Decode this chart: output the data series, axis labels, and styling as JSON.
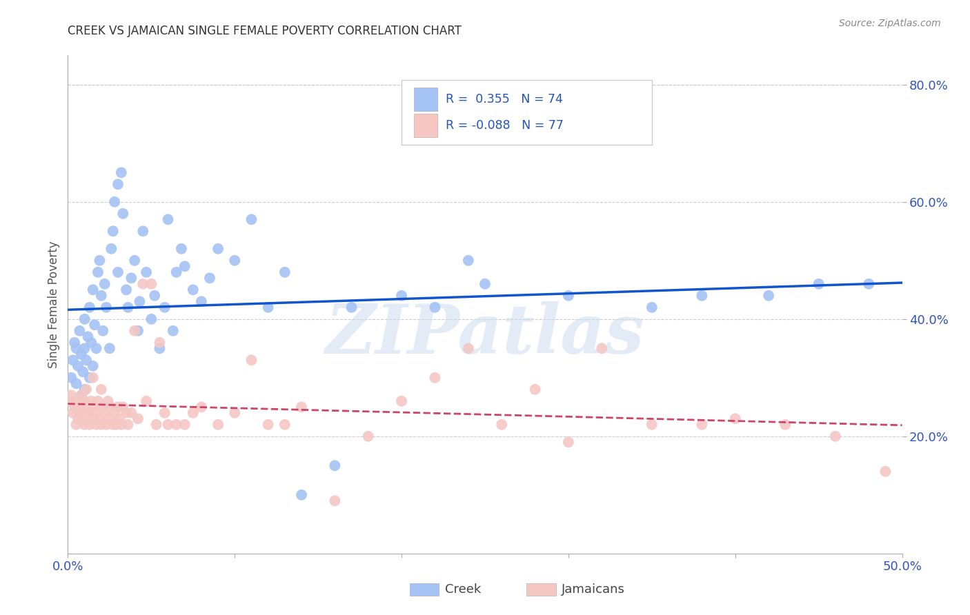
{
  "title": "CREEK VS JAMAICAN SINGLE FEMALE POVERTY CORRELATION CHART",
  "source": "Source: ZipAtlas.com",
  "ylabel": "Single Female Poverty",
  "xlim": [
    0.0,
    0.5
  ],
  "ylim": [
    0.0,
    0.85
  ],
  "xticks": [
    0.0,
    0.1,
    0.2,
    0.3,
    0.4,
    0.5
  ],
  "xticklabels": [
    "0.0%",
    "",
    "",
    "",
    "",
    "50.0%"
  ],
  "yticks_right": [
    0.2,
    0.4,
    0.6,
    0.8
  ],
  "ytick_labels_right": [
    "20.0%",
    "40.0%",
    "60.0%",
    "80.0%"
  ],
  "creek_color": "#a4c2f4",
  "jamaican_color": "#f4c7c3",
  "creek_line_color": "#1155cc",
  "jamaican_line_color": "#cc4466",
  "creek_R": 0.355,
  "creek_N": 74,
  "jamaican_R": -0.088,
  "jamaican_N": 77,
  "watermark": "ZIPatlas",
  "creek_scatter_x": [
    0.002,
    0.003,
    0.004,
    0.005,
    0.005,
    0.006,
    0.007,
    0.008,
    0.008,
    0.009,
    0.01,
    0.01,
    0.01,
    0.011,
    0.012,
    0.013,
    0.013,
    0.014,
    0.015,
    0.015,
    0.016,
    0.017,
    0.018,
    0.019,
    0.02,
    0.021,
    0.022,
    0.023,
    0.025,
    0.026,
    0.027,
    0.028,
    0.03,
    0.03,
    0.032,
    0.033,
    0.035,
    0.036,
    0.038,
    0.04,
    0.042,
    0.043,
    0.045,
    0.047,
    0.05,
    0.052,
    0.055,
    0.058,
    0.06,
    0.063,
    0.065,
    0.068,
    0.07,
    0.075,
    0.08,
    0.085,
    0.09,
    0.1,
    0.11,
    0.12,
    0.13,
    0.14,
    0.16,
    0.17,
    0.2,
    0.22,
    0.24,
    0.25,
    0.3,
    0.35,
    0.38,
    0.42,
    0.45,
    0.48
  ],
  "creek_scatter_y": [
    0.3,
    0.33,
    0.36,
    0.29,
    0.35,
    0.32,
    0.38,
    0.27,
    0.34,
    0.31,
    0.28,
    0.35,
    0.4,
    0.33,
    0.37,
    0.3,
    0.42,
    0.36,
    0.32,
    0.45,
    0.39,
    0.35,
    0.48,
    0.5,
    0.44,
    0.38,
    0.46,
    0.42,
    0.35,
    0.52,
    0.55,
    0.6,
    0.48,
    0.63,
    0.65,
    0.58,
    0.45,
    0.42,
    0.47,
    0.5,
    0.38,
    0.43,
    0.55,
    0.48,
    0.4,
    0.44,
    0.35,
    0.42,
    0.57,
    0.38,
    0.48,
    0.52,
    0.49,
    0.45,
    0.43,
    0.47,
    0.52,
    0.5,
    0.57,
    0.42,
    0.48,
    0.1,
    0.15,
    0.42,
    0.44,
    0.42,
    0.5,
    0.46,
    0.44,
    0.42,
    0.44,
    0.44,
    0.46,
    0.46
  ],
  "jamaican_scatter_x": [
    0.001,
    0.002,
    0.003,
    0.004,
    0.005,
    0.005,
    0.006,
    0.007,
    0.008,
    0.008,
    0.009,
    0.01,
    0.01,
    0.011,
    0.011,
    0.012,
    0.013,
    0.014,
    0.015,
    0.015,
    0.015,
    0.016,
    0.017,
    0.018,
    0.019,
    0.02,
    0.02,
    0.021,
    0.022,
    0.023,
    0.024,
    0.025,
    0.026,
    0.027,
    0.028,
    0.029,
    0.03,
    0.031,
    0.032,
    0.033,
    0.035,
    0.036,
    0.038,
    0.04,
    0.042,
    0.045,
    0.047,
    0.05,
    0.053,
    0.055,
    0.058,
    0.06,
    0.065,
    0.07,
    0.075,
    0.08,
    0.09,
    0.1,
    0.11,
    0.12,
    0.13,
    0.14,
    0.16,
    0.18,
    0.2,
    0.22,
    0.24,
    0.26,
    0.28,
    0.3,
    0.32,
    0.35,
    0.38,
    0.4,
    0.43,
    0.46,
    0.49
  ],
  "jamaican_scatter_y": [
    0.26,
    0.27,
    0.24,
    0.25,
    0.22,
    0.26,
    0.23,
    0.25,
    0.27,
    0.24,
    0.23,
    0.22,
    0.26,
    0.25,
    0.28,
    0.24,
    0.22,
    0.26,
    0.23,
    0.25,
    0.3,
    0.24,
    0.22,
    0.26,
    0.23,
    0.22,
    0.28,
    0.25,
    0.24,
    0.22,
    0.26,
    0.23,
    0.25,
    0.22,
    0.24,
    0.22,
    0.25,
    0.23,
    0.22,
    0.25,
    0.24,
    0.22,
    0.24,
    0.38,
    0.23,
    0.46,
    0.26,
    0.46,
    0.22,
    0.36,
    0.24,
    0.22,
    0.22,
    0.22,
    0.24,
    0.25,
    0.22,
    0.24,
    0.33,
    0.22,
    0.22,
    0.25,
    0.09,
    0.2,
    0.26,
    0.3,
    0.35,
    0.22,
    0.28,
    0.19,
    0.35,
    0.22,
    0.22,
    0.23,
    0.22,
    0.2,
    0.14
  ]
}
